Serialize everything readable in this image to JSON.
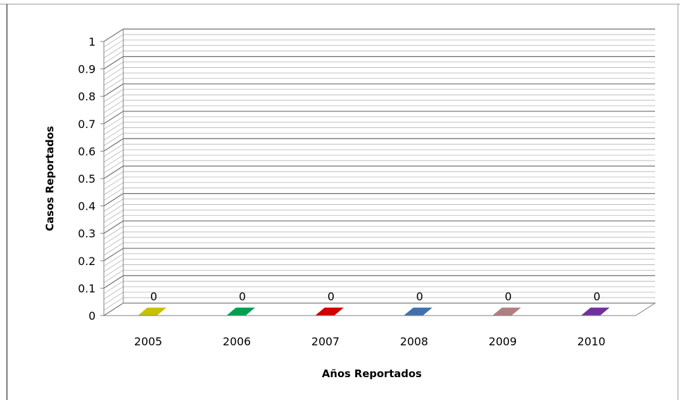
{
  "chart_data": {
    "type": "bar",
    "title": "",
    "xlabel": "Años  Reportados",
    "ylabel": "Casos Reportados",
    "categories": [
      "2005",
      "2006",
      "2007",
      "2008",
      "2009",
      "2010"
    ],
    "values": [
      0,
      0,
      0,
      0,
      0,
      0
    ],
    "data_labels": [
      "0",
      "0",
      "0",
      "0",
      "0",
      "0"
    ],
    "colors": [
      "#c8c000",
      "#00a050",
      "#d00000",
      "#4070b0",
      "#b08080",
      "#7030a0"
    ],
    "ylim": [
      0,
      1
    ],
    "yticks": [
      "0",
      "0.1",
      "0.2",
      "0.3",
      "0.4",
      "0.5",
      "0.6",
      "0.7",
      "0.8",
      "0.9",
      "1"
    ],
    "grid": true,
    "legend": "none"
  }
}
